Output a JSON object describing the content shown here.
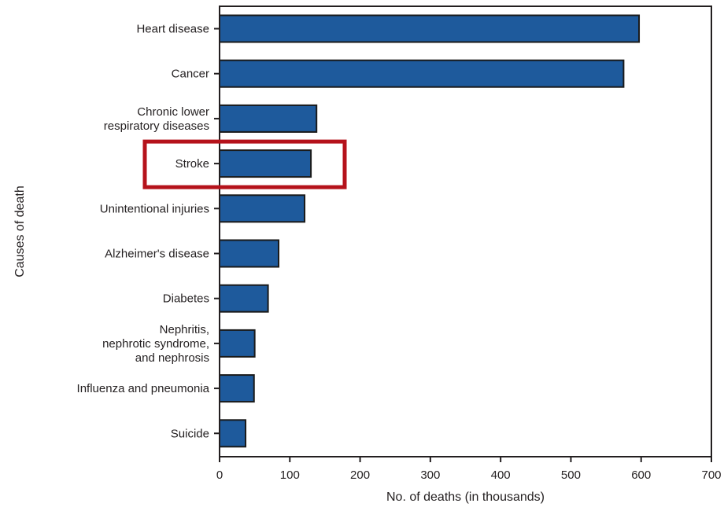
{
  "chart_data": {
    "type": "bar",
    "orientation": "horizontal",
    "title": "",
    "xlabel": "No. of deaths (in thousands)",
    "ylabel": "Causes of death",
    "xlim": [
      0,
      700
    ],
    "xticks": [
      0,
      100,
      200,
      300,
      400,
      500,
      600,
      700
    ],
    "categories": [
      [
        "Heart disease"
      ],
      [
        "Cancer"
      ],
      [
        "Chronic lower",
        "respiratory diseases"
      ],
      [
        "Stroke"
      ],
      [
        "Unintentional injuries"
      ],
      [
        "Alzheimer's disease"
      ],
      [
        "Diabetes"
      ],
      [
        "Nephritis,",
        "nephrotic syndrome,",
        "and nephrosis"
      ],
      [
        "Influenza and pneumonia"
      ],
      [
        "Suicide"
      ]
    ],
    "values": [
      597,
      575,
      138,
      130,
      121,
      84,
      69,
      50,
      49,
      37
    ],
    "bar_color": "#1e5a9c",
    "bar_edge_color": "#1a1a1a",
    "highlight": {
      "category_index": 3,
      "color": "#b5121b"
    },
    "grid": false,
    "legend": "none"
  }
}
